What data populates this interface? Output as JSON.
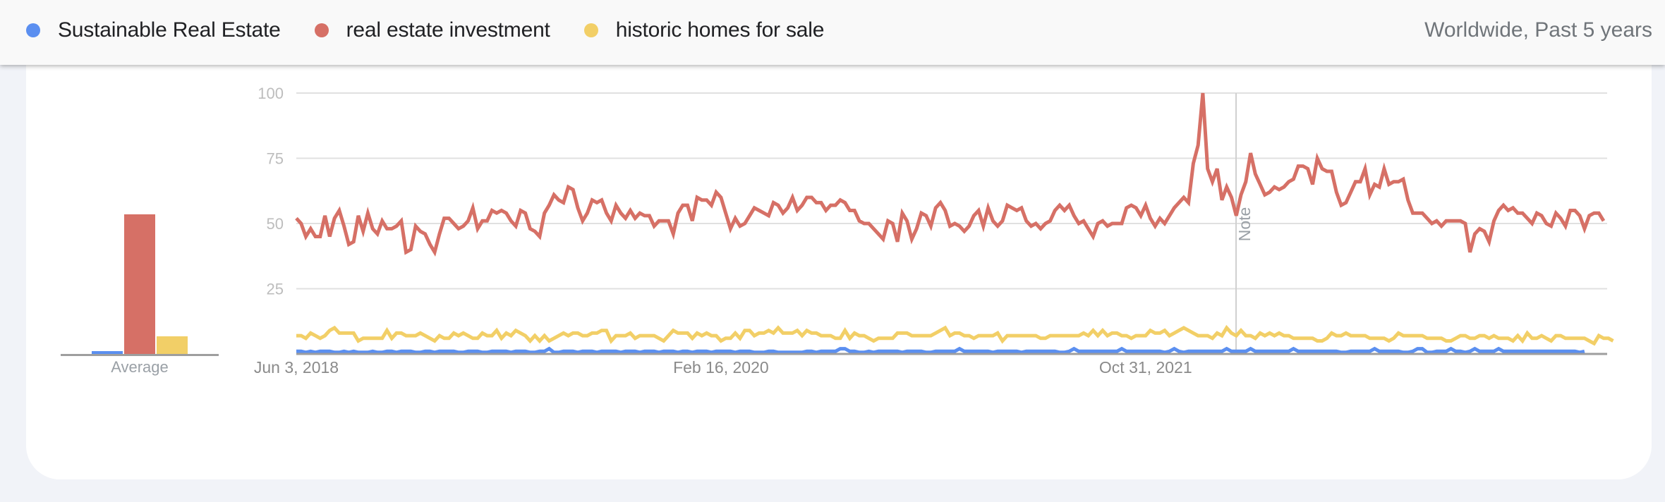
{
  "header": {
    "legend": [
      {
        "label": "Sustainable Real Estate",
        "color": "#5b8ff0"
      },
      {
        "label": "real estate investment",
        "color": "#d67066"
      },
      {
        "label": "historic homes for sale",
        "color": "#f2cf67"
      }
    ],
    "scope": "Worldwide, Past 5 years"
  },
  "average": {
    "label": "Average",
    "values": [
      1,
      55,
      7
    ]
  },
  "note": {
    "label": "Note",
    "date": "Jan 1, 2022"
  },
  "chart_data": {
    "type": "line",
    "title": "",
    "xlabel": "",
    "ylabel": "",
    "ylim": [
      0,
      100
    ],
    "yticks": [
      25,
      50,
      75,
      100
    ],
    "xticks": [
      "Jun 3, 2018",
      "Feb 16, 2020",
      "Oct 31, 2021"
    ],
    "x_start": "Jun 3, 2018",
    "x_interval": "weekly",
    "grid": true,
    "legend_position": "top",
    "annotations": [
      {
        "type": "vertical-line",
        "label": "Note",
        "index": 186
      }
    ],
    "averages": {
      "Sustainable Real Estate": 1,
      "real estate investment": 55,
      "historic homes for sale": 7
    },
    "series": [
      {
        "name": "real estate investment",
        "color": "#d67066",
        "values": [
          52,
          50,
          45,
          48,
          45,
          45,
          53,
          45,
          52,
          55,
          49,
          42,
          43,
          53,
          47,
          54,
          48,
          46,
          51,
          48,
          48,
          49,
          51,
          39,
          40,
          49,
          47,
          46,
          42,
          39,
          46,
          52,
          52,
          50,
          48,
          49,
          51,
          56,
          48,
          51,
          51,
          55,
          54,
          55,
          54,
          51,
          49,
          55,
          54,
          48,
          47,
          45,
          54,
          57,
          61,
          59,
          58,
          64,
          63,
          56,
          51,
          54,
          59,
          58,
          59,
          54,
          51,
          57,
          54,
          52,
          55,
          52,
          54,
          53,
          53,
          49,
          51,
          51,
          51,
          46,
          54,
          57,
          57,
          51,
          60,
          59,
          59,
          57,
          62,
          60,
          54,
          48,
          52,
          49,
          50,
          53,
          56,
          55,
          54,
          53,
          58,
          57,
          54,
          56,
          60,
          55,
          57,
          60,
          60,
          58,
          58,
          55,
          57,
          57,
          59,
          58,
          55,
          55,
          51,
          50,
          50,
          48,
          46,
          44,
          51,
          50,
          43,
          54,
          51,
          44,
          48,
          54,
          53,
          49,
          56,
          58,
          55,
          49,
          50,
          49,
          47,
          49,
          53,
          55,
          49,
          56,
          51,
          49,
          51,
          57,
          56,
          55,
          56,
          51,
          49,
          50,
          48,
          50,
          51,
          55,
          57,
          55,
          57,
          53,
          50,
          51,
          48,
          45,
          50,
          51,
          49,
          50,
          50,
          50,
          56,
          57,
          56,
          53,
          57,
          52,
          49,
          52,
          50,
          53,
          56,
          58,
          60,
          58,
          73,
          80,
          100,
          71,
          66,
          71,
          59,
          64,
          60,
          53,
          61,
          66,
          77,
          69,
          65,
          61,
          62,
          64,
          63,
          64,
          66,
          67,
          72,
          72,
          71,
          65,
          75,
          71,
          70,
          70,
          62,
          57,
          58,
          62,
          66,
          66,
          71,
          61,
          65,
          64,
          71,
          65,
          66,
          66,
          67,
          59,
          54,
          54,
          54,
          52,
          50,
          51,
          49,
          51,
          51,
          51,
          51,
          50,
          39,
          46,
          48,
          47,
          43,
          51,
          55,
          57,
          55,
          56,
          54,
          54,
          52,
          50,
          54,
          53,
          50,
          49,
          54,
          52,
          49,
          55,
          55,
          53,
          48,
          53,
          54,
          54,
          51
        ],
        "_comment": ""
      },
      {
        "name": "historic homes for sale",
        "color": "#f2cf67",
        "values": [
          7,
          7,
          6,
          8,
          7,
          6,
          7,
          9,
          10,
          8,
          8,
          8,
          8,
          5,
          6,
          6,
          6,
          6,
          6,
          9,
          6,
          8,
          8,
          7,
          7,
          7,
          8,
          7,
          6,
          5,
          7,
          6,
          6,
          8,
          7,
          8,
          7,
          6,
          6,
          8,
          7,
          7,
          9,
          6,
          8,
          7,
          9,
          8,
          7,
          5,
          7,
          5,
          7,
          5,
          6,
          7,
          8,
          7,
          8,
          8,
          7,
          7,
          8,
          8,
          9,
          9,
          5,
          7,
          7,
          7,
          8,
          6,
          7,
          7,
          7,
          7,
          6,
          5,
          7,
          9,
          8,
          8,
          8,
          6,
          8,
          7,
          8,
          7,
          7,
          5,
          6,
          6,
          8,
          6,
          9,
          9,
          7,
          8,
          8,
          9,
          8,
          10,
          8,
          8,
          8,
          9,
          7,
          9,
          8,
          8,
          7,
          7,
          7,
          6,
          6,
          9,
          6,
          8,
          7,
          7,
          6,
          5,
          6,
          6,
          6,
          6,
          8,
          8,
          8,
          7,
          7,
          7,
          7,
          7,
          8,
          9,
          10,
          7,
          8,
          8,
          7,
          7,
          6,
          7,
          7,
          7,
          7,
          8,
          5,
          7,
          7,
          7,
          7,
          7,
          7,
          7,
          6,
          6,
          7,
          7,
          7,
          7,
          7,
          7,
          7,
          8,
          7,
          9,
          7,
          9,
          7,
          8,
          8,
          7,
          7,
          6,
          7,
          7,
          7,
          9,
          8,
          8,
          9,
          7,
          8,
          9,
          10,
          9,
          8,
          7,
          7,
          7,
          6,
          8,
          7,
          10,
          8,
          7,
          9,
          7,
          7,
          6,
          8,
          7,
          8,
          7,
          8,
          7,
          7,
          6,
          6,
          6,
          6,
          6,
          5,
          5,
          6,
          8,
          7,
          7,
          8,
          7,
          7,
          7,
          7,
          6,
          6,
          6,
          6,
          5,
          6,
          8,
          7,
          7,
          7,
          7,
          7,
          6,
          6,
          6,
          6,
          5,
          5,
          6,
          7,
          7,
          6,
          6,
          7,
          7,
          6,
          7,
          6,
          6,
          6,
          5,
          7,
          5,
          8,
          6,
          6,
          7,
          6,
          5,
          7,
          7,
          6,
          6,
          6,
          6,
          6,
          5,
          4,
          7,
          6,
          6,
          5
        ],
        "_comment": ""
      },
      {
        "name": "Sustainable Real Estate",
        "color": "#5b8ff0",
        "values": [
          1,
          1,
          0,
          1,
          0,
          1,
          1,
          1,
          0,
          0,
          1,
          0,
          1,
          0,
          0,
          0,
          1,
          0,
          0,
          1,
          1,
          0,
          1,
          1,
          1,
          0,
          0,
          1,
          1,
          0,
          1,
          1,
          1,
          1,
          0,
          0,
          1,
          1,
          1,
          0,
          0,
          1,
          1,
          1,
          1,
          0,
          1,
          1,
          1,
          0,
          0,
          1,
          1,
          2,
          0,
          0,
          1,
          1,
          1,
          0,
          1,
          1,
          1,
          0,
          1,
          1,
          1,
          1,
          0,
          1,
          1,
          1,
          0,
          1,
          1,
          1,
          0,
          1,
          1,
          1,
          0,
          1,
          1,
          0,
          1,
          1,
          1,
          0,
          1,
          1,
          1,
          1,
          0,
          1,
          1,
          1,
          0,
          0,
          0,
          1,
          1,
          0,
          0,
          0,
          0,
          0,
          0,
          1,
          1,
          0,
          1,
          1,
          1,
          1,
          2,
          2,
          1,
          1,
          0,
          0,
          1,
          0,
          1,
          1,
          1,
          1,
          1,
          0,
          1,
          1,
          1,
          1,
          0,
          0,
          1,
          1,
          1,
          1,
          1,
          2,
          1,
          1,
          1,
          1,
          1,
          1,
          0,
          1,
          1,
          1,
          1,
          1,
          0,
          1,
          1,
          1,
          1,
          1,
          1,
          1,
          0,
          0,
          1,
          2,
          1,
          1,
          1,
          1,
          1,
          1,
          1,
          1,
          1,
          2,
          1,
          1,
          1,
          1,
          1,
          1,
          1,
          1,
          0,
          1,
          2,
          1,
          0,
          1,
          1,
          1,
          1,
          1,
          1,
          1,
          1,
          2,
          1,
          1,
          1,
          1,
          2,
          1,
          1,
          1,
          1,
          1,
          1,
          1,
          1,
          2,
          1,
          1,
          1,
          1,
          1,
          1,
          1,
          1,
          1,
          0,
          0,
          1,
          1,
          1,
          1,
          1,
          2,
          1,
          1,
          1,
          1,
          1,
          0,
          0,
          1,
          2,
          2,
          0,
          0,
          1,
          1,
          1,
          2,
          1,
          1,
          0,
          1,
          2,
          1,
          1,
          1,
          1,
          2,
          1,
          1,
          1,
          1,
          1,
          1,
          1,
          1,
          1,
          1,
          1,
          1,
          1,
          1,
          1,
          1,
          0,
          1
        ],
        "_comment": ""
      }
    ]
  }
}
